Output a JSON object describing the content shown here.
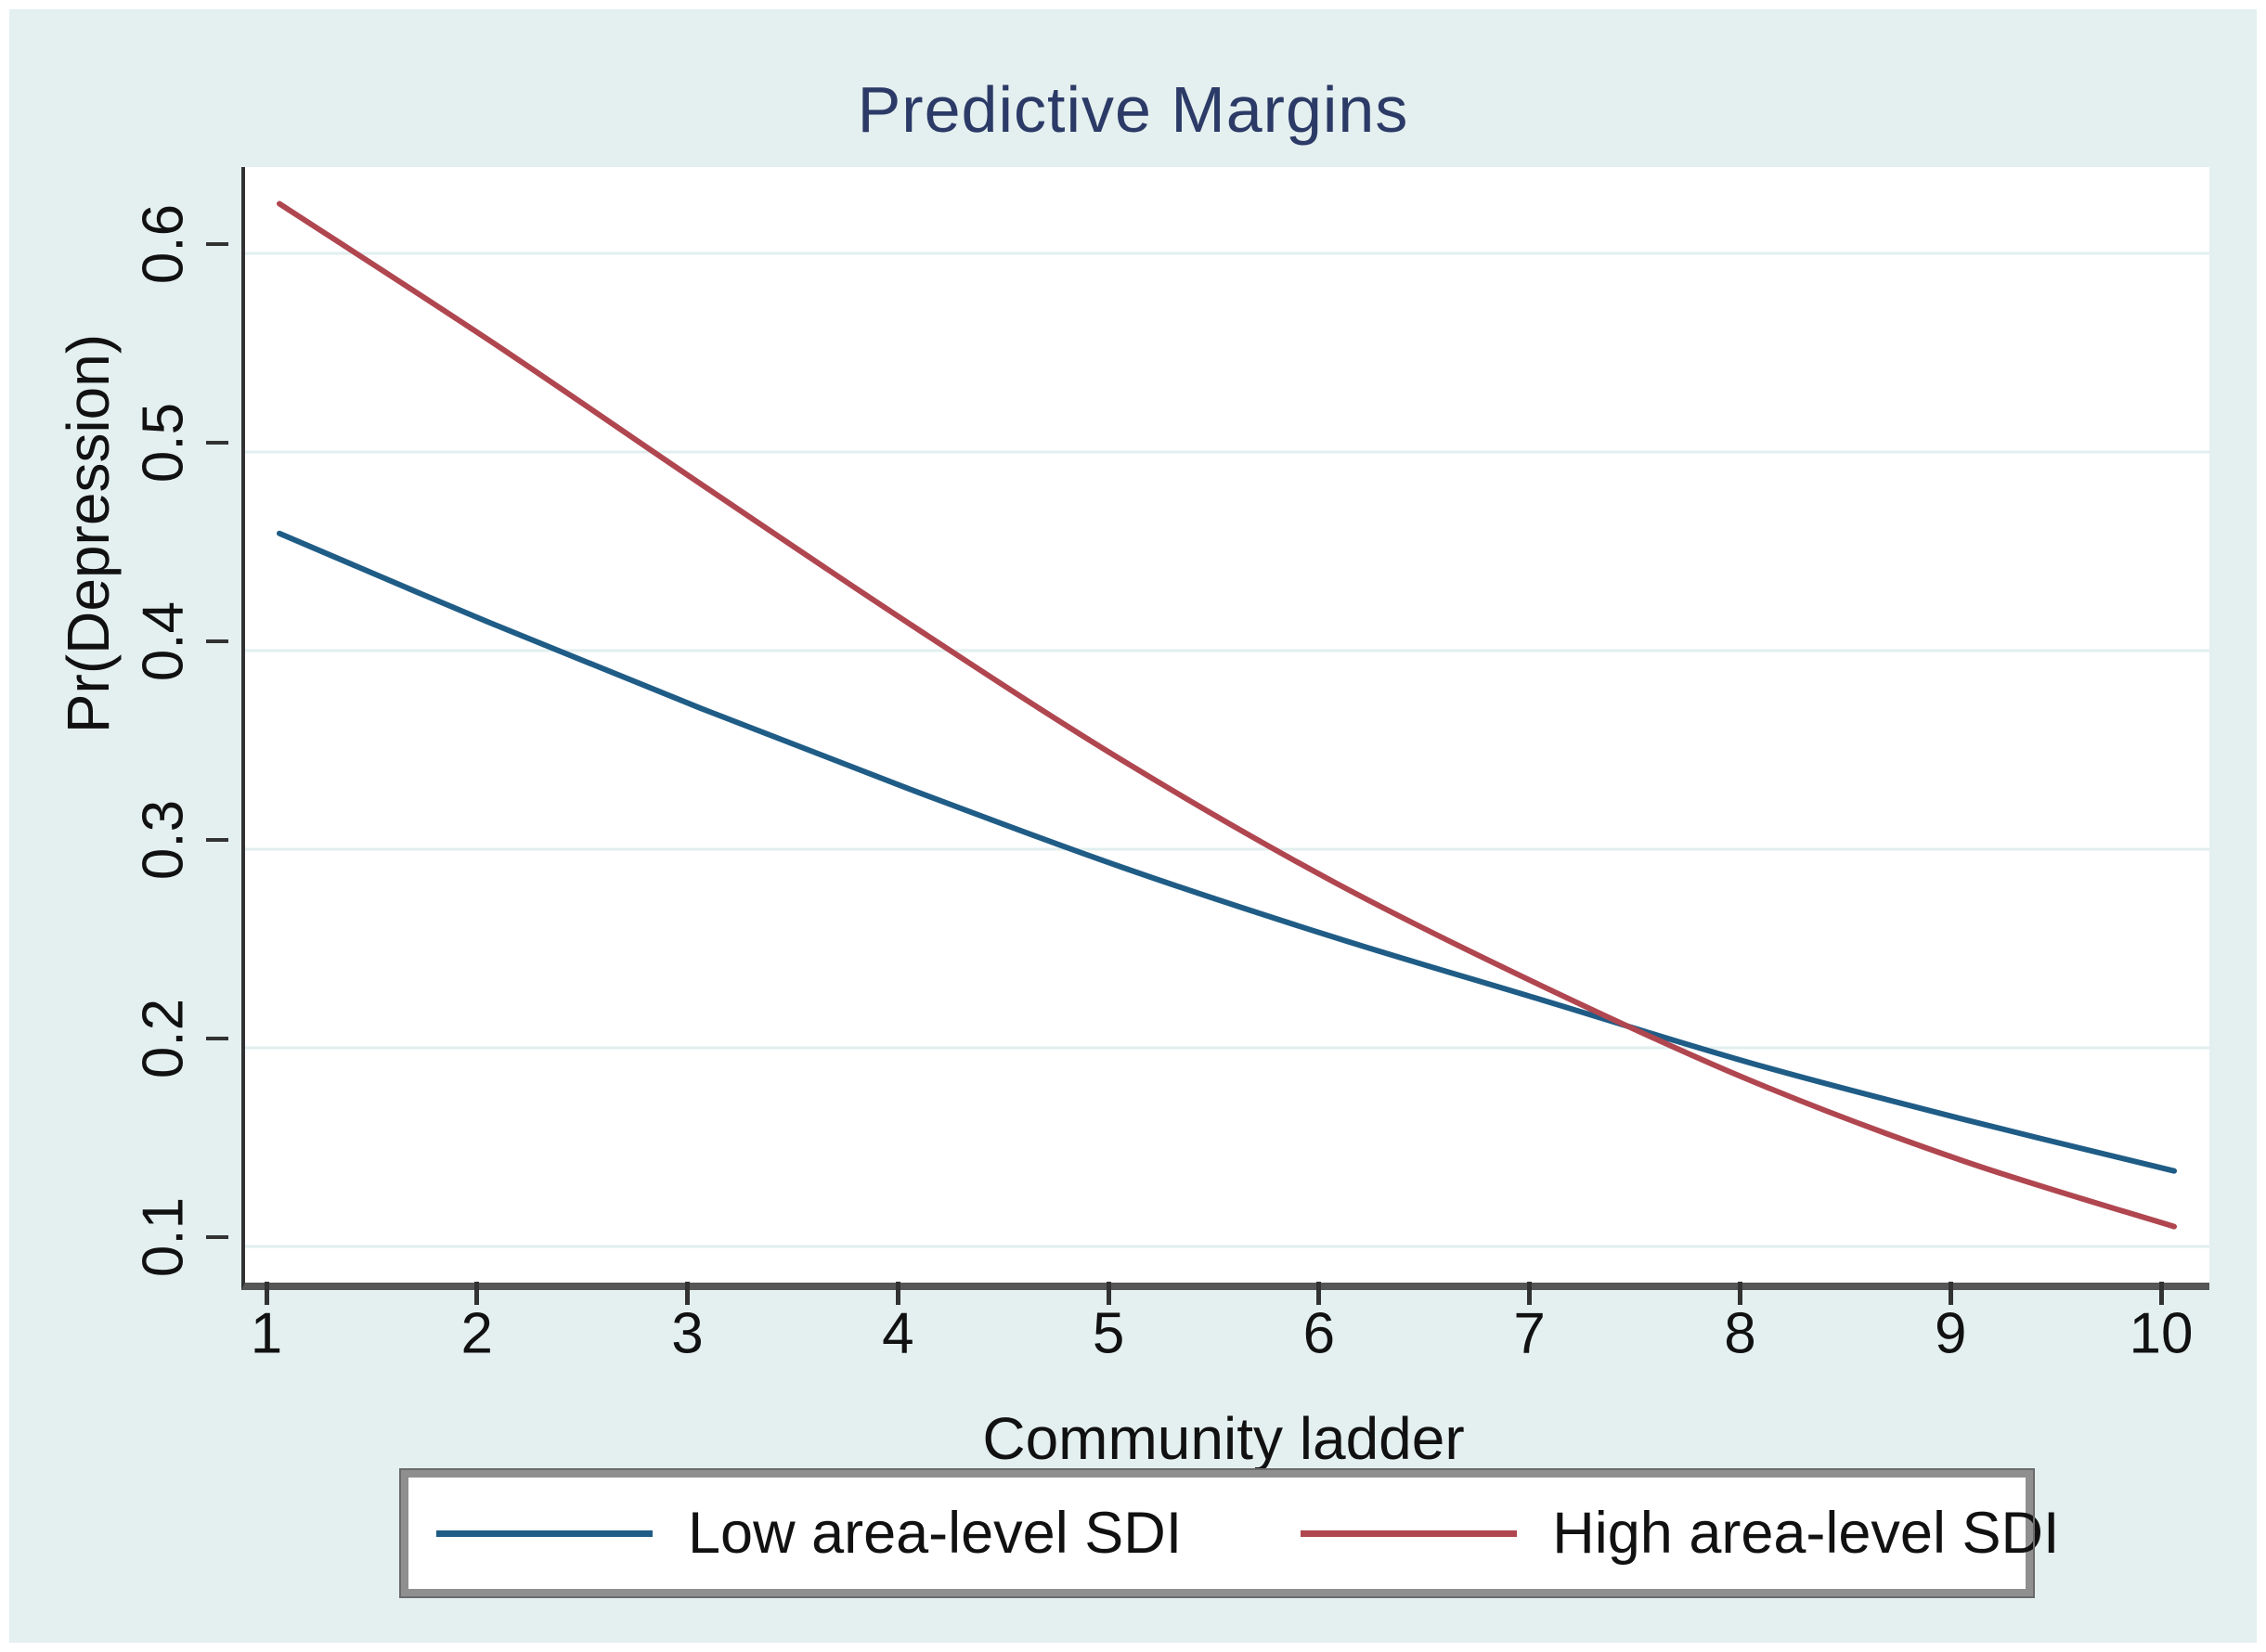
{
  "figure": {
    "title": "Predictive Margins",
    "title_color": "#2b3a66",
    "background_color": "#e4efef",
    "plot_background_color": "#ffffff",
    "gridline_color": "#e2efef",
    "axis_color": "#323232"
  },
  "chart_data": {
    "type": "line",
    "title": "Predictive Margins",
    "xlabel": "Community ladder",
    "ylabel": "Pr(Depression)",
    "x": [
      1,
      2,
      3,
      4,
      5,
      6,
      7,
      8,
      9,
      10
    ],
    "x_tick_labels": [
      "1",
      "2",
      "3",
      "4",
      "5",
      "6",
      "7",
      "8",
      "9",
      "10"
    ],
    "y_ticks": [
      0.1,
      0.2,
      0.3,
      0.4,
      0.5,
      0.6
    ],
    "y_tick_labels": [
      "0.1",
      "0.2",
      "0.3",
      "0.4",
      "0.5",
      "0.6"
    ],
    "xlim": [
      0.837,
      10.17
    ],
    "ylim": [
      0.082,
      0.643
    ],
    "grid": true,
    "legend_position": "bottom-center",
    "series": [
      {
        "name": "Low area-level SDI",
        "color": "#1f5c86",
        "values": [
          0.459,
          0.414,
          0.371,
          0.33,
          0.291,
          0.256,
          0.224,
          0.192,
          0.164,
          0.138
        ]
      },
      {
        "name": "High area-level SDI",
        "color": "#b0464f",
        "values": [
          0.625,
          0.556,
          0.484,
          0.413,
          0.345,
          0.284,
          0.231,
          0.183,
          0.143,
          0.11
        ]
      }
    ]
  }
}
